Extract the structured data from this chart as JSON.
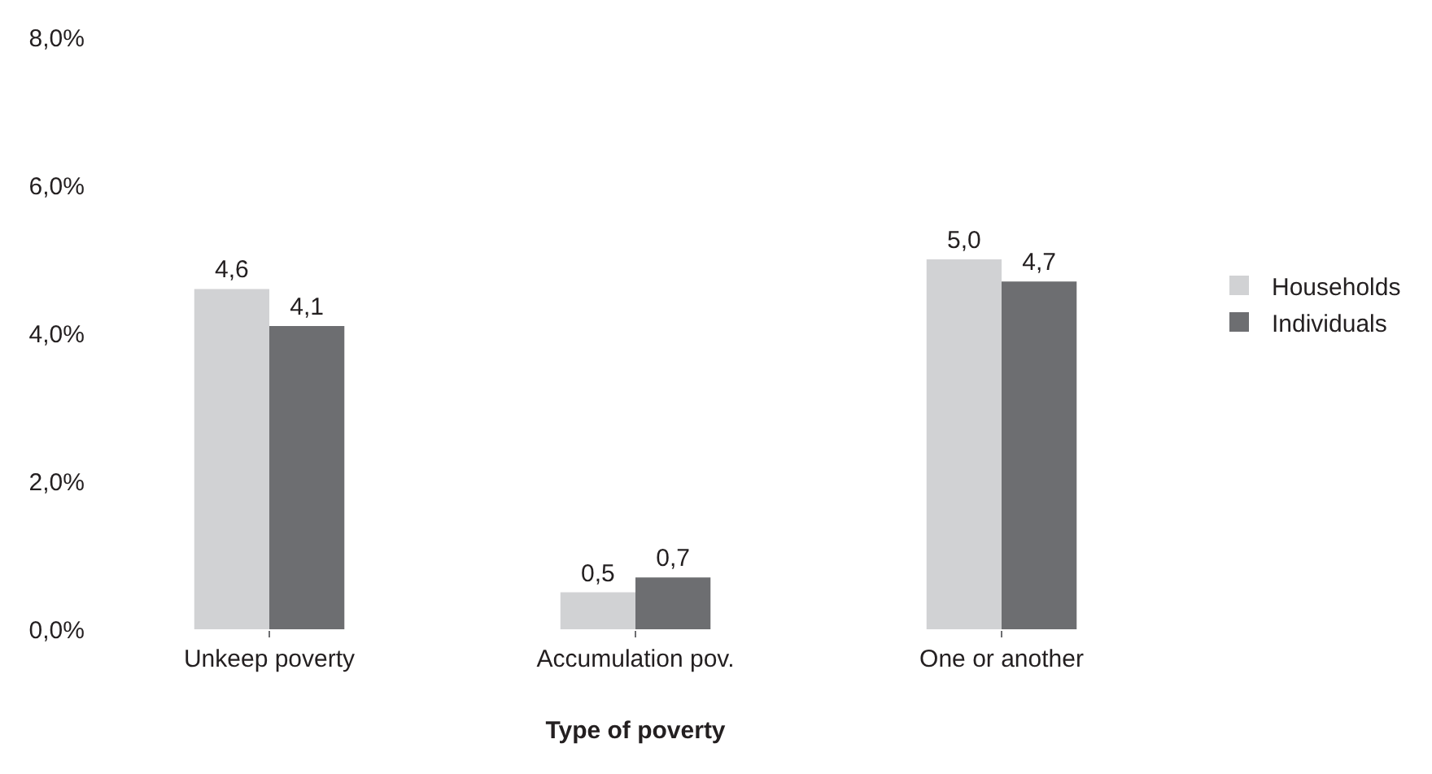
{
  "chart_data": {
    "type": "bar",
    "xlabel": "Type of poverty",
    "categories": [
      "Unkeep poverty",
      "Accumulation pov.",
      "One or another"
    ],
    "series": [
      {
        "name": "Households",
        "color": "#d1d2d4",
        "values": [
          4.6,
          0.5,
          5.0
        ],
        "value_labels": [
          "4,6",
          "0,5",
          "5,0"
        ]
      },
      {
        "name": "Individuals",
        "color": "#6d6e71",
        "values": [
          4.1,
          0.7,
          4.7
        ],
        "value_labels": [
          "4,1",
          "0,7",
          "4,7"
        ]
      }
    ],
    "ylim": [
      0,
      8
    ],
    "yticks": [
      {
        "value": 0,
        "label": "0,0%"
      },
      {
        "value": 2,
        "label": "2,0%"
      },
      {
        "value": 4,
        "label": "4,0%"
      },
      {
        "value": 6,
        "label": "6,0%"
      },
      {
        "value": 8,
        "label": "8,0%"
      }
    ],
    "grid": false,
    "legend": "right"
  }
}
